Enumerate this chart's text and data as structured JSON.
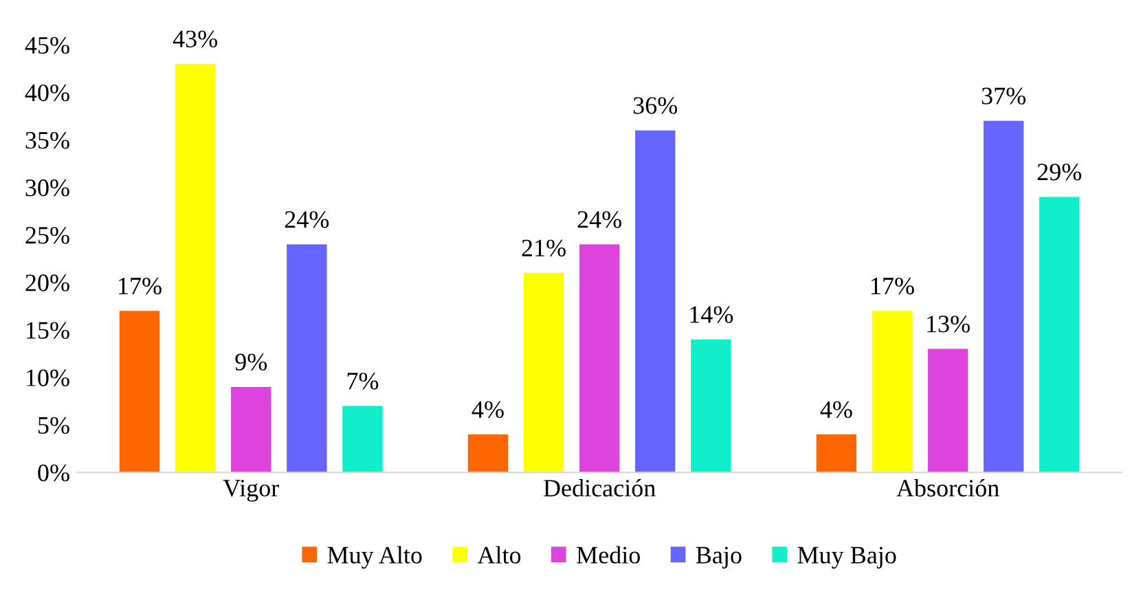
{
  "chart_data": {
    "type": "bar",
    "categories": [
      "Vigor",
      "Dedicación",
      "Absorción"
    ],
    "series": [
      {
        "name": "Muy Alto",
        "color": "#ff6600",
        "values": [
          17,
          4,
          4
        ],
        "value_labels": [
          "17%",
          "4%",
          "4%"
        ]
      },
      {
        "name": "Alto",
        "color": "#ffff00",
        "values": [
          43,
          21,
          17
        ],
        "value_labels": [
          "43%",
          "21%",
          "17%"
        ]
      },
      {
        "name": "Medio",
        "color": "#dd44dd",
        "values": [
          9,
          24,
          13
        ],
        "value_labels": [
          "9%",
          "24%",
          "13%"
        ]
      },
      {
        "name": "Bajo",
        "color": "#6666ff",
        "values": [
          24,
          36,
          37
        ],
        "value_labels": [
          "24%",
          "36%",
          "37%"
        ]
      },
      {
        "name": "Muy Bajo",
        "color": "#11eecc",
        "values": [
          7,
          14,
          29
        ],
        "value_labels": [
          "7%",
          "14%",
          "29%"
        ]
      }
    ],
    "ylim": [
      0,
      45
    ],
    "yticks": [
      {
        "value": 0,
        "label": "0%"
      },
      {
        "value": 5,
        "label": "5%"
      },
      {
        "value": 10,
        "label": "10%"
      },
      {
        "value": 15,
        "label": "15%"
      },
      {
        "value": 20,
        "label": "20%"
      },
      {
        "value": 25,
        "label": "25%"
      },
      {
        "value": 30,
        "label": "30%"
      },
      {
        "value": 35,
        "label": "35%"
      },
      {
        "value": 40,
        "label": "40%"
      },
      {
        "value": 45,
        "label": "45%"
      }
    ],
    "grid": false,
    "legend": "bottom"
  }
}
